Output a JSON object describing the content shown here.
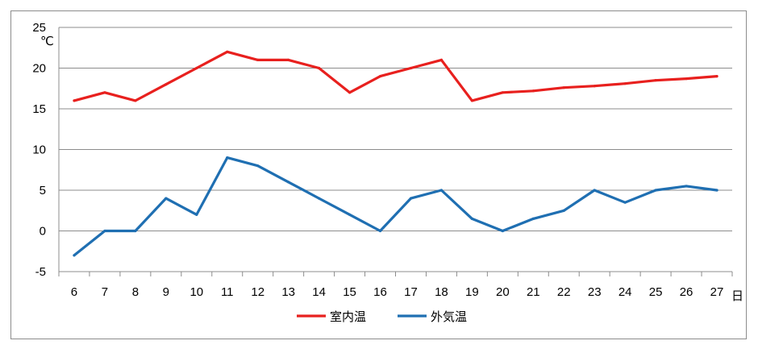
{
  "chart_data": {
    "type": "line",
    "title": "",
    "xlabel": "",
    "ylabel": "",
    "x_unit": "日",
    "y_unit": "℃",
    "x": [
      6,
      7,
      8,
      9,
      10,
      11,
      12,
      13,
      14,
      15,
      16,
      17,
      18,
      19,
      20,
      21,
      22,
      23,
      24,
      25,
      26,
      27
    ],
    "ylim": [
      -5,
      25
    ],
    "yticks": [
      -5,
      0,
      5,
      10,
      15,
      20,
      25
    ],
    "grid": "horizontal",
    "legend_position": "bottom",
    "series": [
      {
        "name": "室内温",
        "color": "#e8201e",
        "values": [
          16,
          17,
          16,
          18,
          20,
          22,
          21,
          21,
          20,
          17,
          19,
          20,
          21,
          16,
          17,
          17.2,
          17.6,
          17.8,
          18.1,
          18.5,
          18.7,
          19
        ]
      },
      {
        "name": "外気温",
        "color": "#1f6fb2",
        "values": [
          -3,
          0,
          0,
          4,
          2,
          9,
          8,
          6,
          4,
          2,
          0,
          4,
          5,
          1.5,
          0,
          1.5,
          2.5,
          5,
          3.5,
          5,
          5.5,
          5
        ]
      }
    ]
  }
}
